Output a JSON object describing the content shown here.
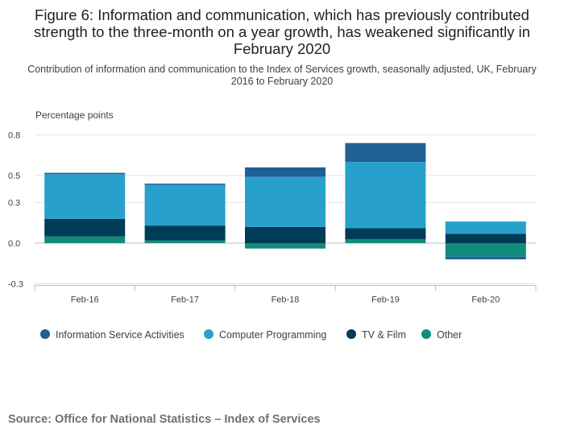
{
  "header": {
    "title": "Figure 6: Information and communication, which has previously contributed strength to the three-month on a year growth, has weakened significantly in February 2020",
    "subtitle": "Contribution of information and communication to the Index of Services growth, seasonally adjusted, UK, February 2016 to February 2020"
  },
  "footer": {
    "source": "Source: Office for National Statistics – Index of Services"
  },
  "chart_data": {
    "type": "bar",
    "stacked": true,
    "ylabel": "Percentage points",
    "ylim": [
      -0.3,
      0.8
    ],
    "yticks": [
      0.8,
      0.5,
      0.3,
      0.0,
      -0.3
    ],
    "ytick_labels": [
      "0.8",
      "0.5",
      "0.3",
      "0.0",
      "-0.3"
    ],
    "grid": true,
    "legend_position": "bottom",
    "categories": [
      "Feb-16",
      "Feb-17",
      "Feb-18",
      "Feb-19",
      "Feb-20"
    ],
    "series": [
      {
        "name": "Other",
        "color": "#118c7b",
        "values": [
          0.05,
          0.02,
          -0.04,
          0.03,
          -0.1
        ]
      },
      {
        "name": "TV & Film",
        "color": "#003c57",
        "values": [
          0.13,
          0.11,
          0.12,
          0.08,
          0.07
        ]
      },
      {
        "name": "Computer Programming",
        "color": "#27a0cc",
        "values": [
          0.33,
          0.3,
          0.37,
          0.49,
          0.09
        ]
      },
      {
        "name": "Information Service Activities",
        "color": "#206095",
        "values": [
          0.01,
          0.01,
          0.07,
          0.14,
          -0.02
        ]
      }
    ],
    "legend_order": [
      "Information Service Activities",
      "Computer Programming",
      "TV & Film",
      "Other"
    ]
  }
}
